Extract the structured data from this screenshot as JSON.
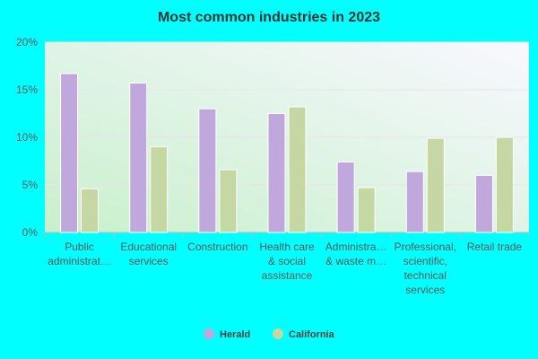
{
  "chart_data": {
    "type": "bar",
    "title": "Most common industries in 2023",
    "categories": [
      "Public\nadministrat…",
      "Educational\nservices",
      "Construction",
      "Health care\n& social\nassistance",
      "Administra…\n& waste m…",
      "Professional,\nscientific,\ntechnical\nservices",
      "Retail trade"
    ],
    "series": [
      {
        "name": "Herald",
        "color": "#c0a8dc",
        "values": [
          16.7,
          15.7,
          13.0,
          12.5,
          7.4,
          6.4,
          6.0
        ]
      },
      {
        "name": "California",
        "color": "#c5d8a4",
        "values": [
          4.6,
          9.0,
          6.6,
          13.2,
          4.7,
          9.9,
          10.0
        ]
      }
    ],
    "ylim": [
      0,
      20
    ],
    "yticks": [
      {
        "value": 0,
        "label": "0%"
      },
      {
        "value": 5,
        "label": "5%"
      },
      {
        "value": 10,
        "label": "10%"
      },
      {
        "value": 15,
        "label": "15%"
      },
      {
        "value": 20,
        "label": "20%"
      }
    ],
    "grid": true
  }
}
